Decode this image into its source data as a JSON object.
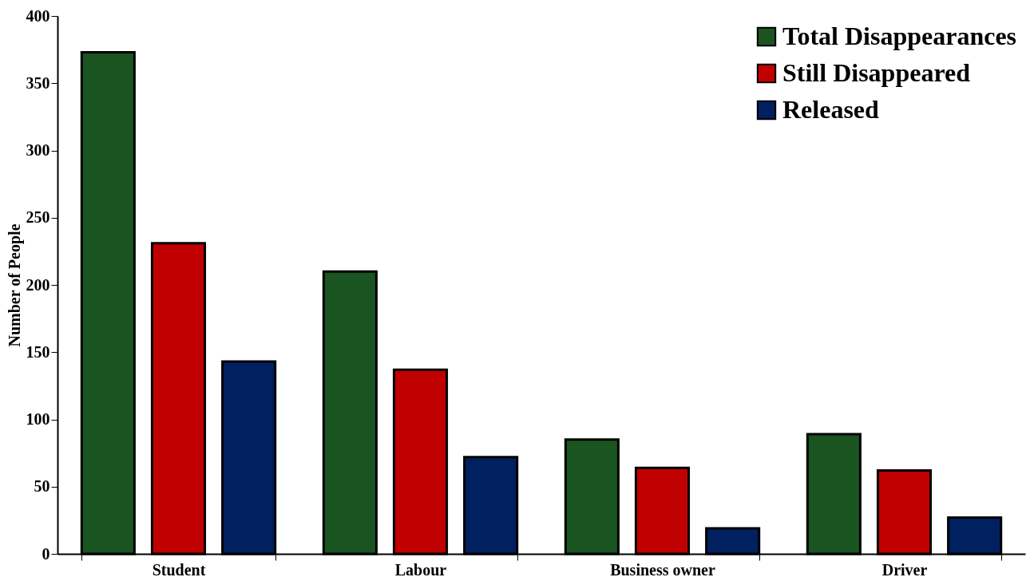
{
  "chart_data": {
    "type": "bar",
    "ylabel": "Number of People",
    "categories": [
      "Student",
      "Labour",
      "Business owner",
      "Driver"
    ],
    "series": [
      {
        "name": "Total Disappearances",
        "color": "#1a5420",
        "values": [
          373,
          210,
          85,
          89
        ]
      },
      {
        "name": "Still Disappeared",
        "color": "#c00000",
        "values": [
          231,
          137,
          64,
          62
        ]
      },
      {
        "name": "Released",
        "color": "#002060",
        "values": [
          143,
          72,
          19,
          27
        ]
      }
    ],
    "ylim": [
      0,
      400
    ],
    "yticks": [
      0,
      50,
      100,
      150,
      200,
      250,
      300,
      350,
      400
    ],
    "grid": false,
    "legend": "top right"
  }
}
